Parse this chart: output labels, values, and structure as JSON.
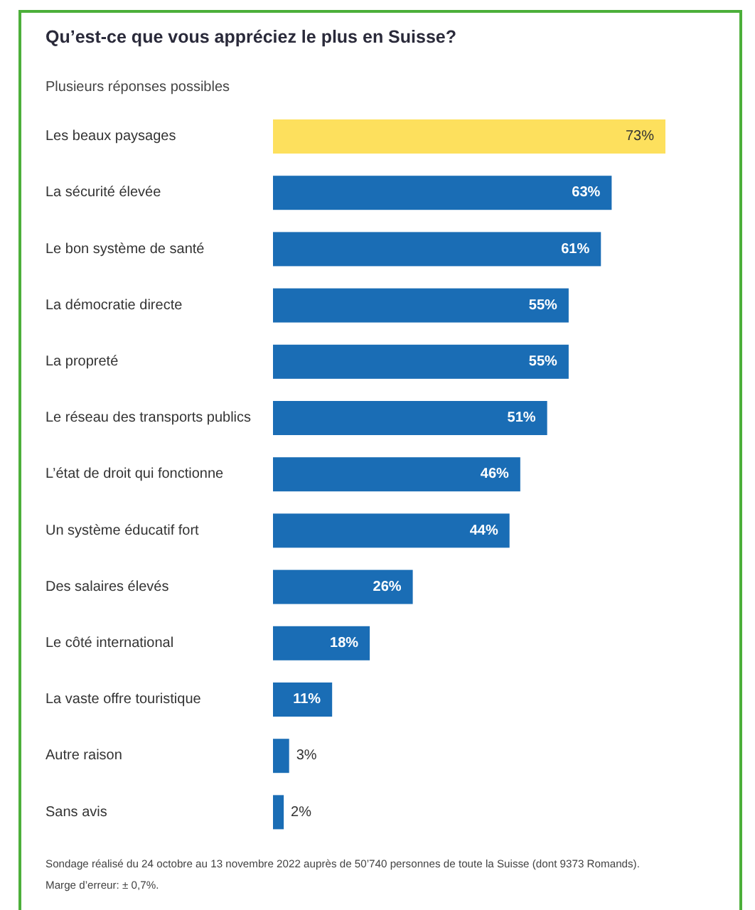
{
  "chart_data": {
    "type": "bar",
    "orientation": "horizontal",
    "title": "Qu’est-ce que vous appréciez le plus en Suisse?",
    "subtitle": "Plusieurs réponses possibles",
    "categories": [
      "Les beaux paysages",
      "La sécurité élevée",
      "Le bon système de santé",
      "La démocratie directe",
      "La propreté",
      "Le réseau des transports publics",
      "L’état de droit qui fonctionne",
      "Un système éducatif fort",
      "Des salaires élevés",
      "Le côté international",
      "La vaste offre touristique",
      "Autre raison",
      "Sans avis"
    ],
    "values": [
      73,
      63,
      61,
      55,
      55,
      51,
      46,
      44,
      26,
      18,
      11,
      3,
      2
    ],
    "value_labels": [
      "73%",
      "63%",
      "61%",
      "55%",
      "55%",
      "51%",
      "46%",
      "44%",
      "26%",
      "18%",
      "11%",
      "3%",
      "2%"
    ],
    "colors": [
      "#fde05d",
      "#1a6db5",
      "#1a6db5",
      "#1a6db5",
      "#1a6db5",
      "#1a6db5",
      "#1a6db5",
      "#1a6db5",
      "#1a6db5",
      "#1a6db5",
      "#1a6db5",
      "#1a6db5",
      "#1a6db5"
    ],
    "annotations": [
      "Sondage réalisé du 24 octobre au 13 novembre 2022 auprès de 50’740 personnes de toute la Suisse (dont 9373 Romands).",
      "Marge d’erreur: ± 0,7%."
    ]
  }
}
